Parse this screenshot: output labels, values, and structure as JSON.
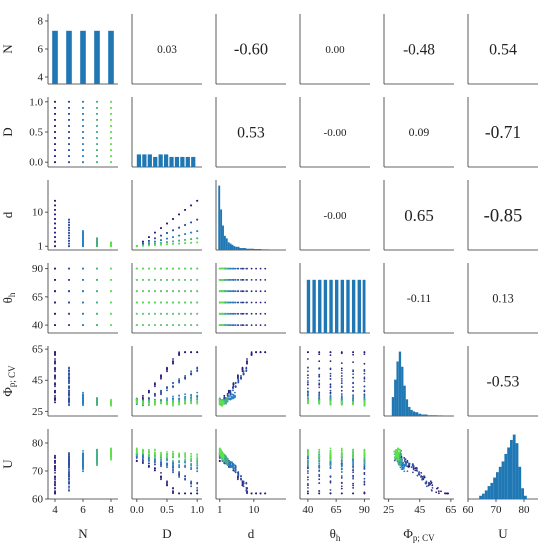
{
  "chart_data": {
    "type": "pairplot",
    "variables": [
      {
        "key": "N",
        "label": "N",
        "range": [
          3.5,
          8.5
        ],
        "ticks": [
          "4",
          "6",
          "8"
        ],
        "tick_values": [
          4,
          6,
          8
        ]
      },
      {
        "key": "D",
        "label": "D",
        "range": [
          -0.08,
          1.08
        ],
        "ticks": [
          "0.0",
          "0.5",
          "1.0"
        ],
        "tick_values": [
          0,
          0.5,
          1
        ]
      },
      {
        "key": "d",
        "label": "d",
        "range": [
          0,
          18.5
        ],
        "ticks": [
          "1",
          "10"
        ],
        "tick_values": [
          1,
          10
        ],
        "xticks": [
          "1",
          "10"
        ],
        "xtick_values": [
          1,
          10
        ]
      },
      {
        "key": "theta_h",
        "label": "θh",
        "range": [
          33,
          95
        ],
        "ticks": [
          "40",
          "65",
          "90"
        ],
        "tick_values": [
          40,
          65,
          90
        ]
      },
      {
        "key": "phi",
        "label": "Φp; CV",
        "range": [
          22,
          67
        ],
        "ticks": [
          "25",
          "45",
          "65"
        ],
        "tick_values": [
          25,
          45,
          65
        ]
      },
      {
        "key": "U",
        "label": "U",
        "range": [
          60,
          85
        ],
        "ticks": [
          "60",
          "70",
          "80"
        ],
        "tick_values": [
          60,
          70,
          80
        ]
      }
    ],
    "correlations": [
      {
        "row": 0,
        "col": 1,
        "value": "0.03"
      },
      {
        "row": 0,
        "col": 2,
        "value": "-0.60"
      },
      {
        "row": 0,
        "col": 3,
        "value": "0.00"
      },
      {
        "row": 0,
        "col": 4,
        "value": "-0.48"
      },
      {
        "row": 0,
        "col": 5,
        "value": "0.54"
      },
      {
        "row": 1,
        "col": 2,
        "value": "0.53"
      },
      {
        "row": 1,
        "col": 3,
        "value": "-0.00"
      },
      {
        "row": 1,
        "col": 4,
        "value": "0.09"
      },
      {
        "row": 1,
        "col": 5,
        "value": "-0.71"
      },
      {
        "row": 2,
        "col": 3,
        "value": "-0.00"
      },
      {
        "row": 2,
        "col": 4,
        "value": "0.65"
      },
      {
        "row": 2,
        "col": 5,
        "value": "-0.85"
      },
      {
        "row": 3,
        "col": 4,
        "value": "-0.11"
      },
      {
        "row": 3,
        "col": 5,
        "value": "0.13"
      },
      {
        "row": 4,
        "col": 5,
        "value": "-0.53"
      }
    ],
    "histograms": [
      {
        "var": "N",
        "bins": [
          [
            3.8,
            4.2,
            6.5
          ],
          [
            4.8,
            5.2,
            6.5
          ],
          [
            5.8,
            6.2,
            6.5
          ],
          [
            6.8,
            7.2,
            6.5
          ],
          [
            7.8,
            8.2,
            6.5
          ]
        ]
      },
      {
        "var": "D",
        "bins": [
          [
            0.0,
            0.07,
            0.25
          ],
          [
            0.09,
            0.16,
            0.25
          ],
          [
            0.18,
            0.25,
            0.25
          ],
          [
            0.27,
            0.34,
            0.2
          ],
          [
            0.36,
            0.43,
            0.25
          ],
          [
            0.45,
            0.52,
            0.25
          ],
          [
            0.54,
            0.61,
            0.2
          ],
          [
            0.63,
            0.7,
            0.2
          ],
          [
            0.72,
            0.79,
            0.2
          ],
          [
            0.81,
            0.88,
            0.2
          ],
          [
            0.9,
            0.97,
            0.2
          ]
        ]
      },
      {
        "var": "d",
        "bins": [
          [
            0.6,
            1.1,
            1.0
          ],
          [
            1.1,
            1.6,
            0.63
          ],
          [
            1.6,
            2.1,
            0.38
          ],
          [
            2.1,
            2.6,
            0.22
          ],
          [
            2.6,
            3.1,
            0.18
          ],
          [
            3.1,
            3.6,
            0.12
          ],
          [
            3.6,
            4.1,
            0.1
          ],
          [
            4.1,
            4.6,
            0.08
          ],
          [
            4.6,
            5.1,
            0.06
          ],
          [
            5.1,
            5.6,
            0.05
          ],
          [
            5.6,
            6.2,
            0.05
          ],
          [
            6.2,
            7,
            0.03
          ],
          [
            7,
            8,
            0.03
          ],
          [
            8,
            9,
            0.02
          ],
          [
            9,
            10,
            0.02
          ],
          [
            10,
            11,
            0.015
          ],
          [
            11,
            12,
            0.015
          ],
          [
            12,
            13,
            0.01
          ],
          [
            13,
            14,
            0.01
          ]
        ]
      },
      {
        "var": "theta_h",
        "bins": [
          [
            39,
            42,
            6.5
          ],
          [
            44,
            47,
            6.5
          ],
          [
            49,
            52,
            6.5
          ],
          [
            54,
            57,
            6.5
          ],
          [
            59,
            62,
            6.5
          ],
          [
            64,
            67,
            6.5
          ],
          [
            69,
            72,
            6.5
          ],
          [
            74,
            77,
            6.5
          ],
          [
            79,
            82,
            6.5
          ],
          [
            84,
            87,
            6.5
          ],
          [
            88.5,
            91,
            6.5
          ]
        ]
      },
      {
        "var": "phi",
        "bins": [
          [
            27,
            28.5,
            0.25
          ],
          [
            28.5,
            30,
            0.48
          ],
          [
            30,
            31.5,
            0.72
          ],
          [
            31.5,
            33,
            0.85
          ],
          [
            33,
            34.5,
            0.65
          ],
          [
            34.5,
            36,
            0.4
          ],
          [
            36,
            37.5,
            0.22
          ],
          [
            37.5,
            39,
            0.12
          ],
          [
            39,
            40.5,
            0.08
          ],
          [
            40.5,
            42,
            0.06
          ],
          [
            42,
            44,
            0.05
          ],
          [
            44,
            46,
            0.03
          ],
          [
            46,
            48,
            0.02
          ],
          [
            48,
            50,
            0.02
          ],
          [
            50,
            53,
            0.01
          ],
          [
            53,
            56,
            0.01
          ],
          [
            56,
            60,
            0.008
          ]
        ]
      },
      {
        "var": "U",
        "bins": [
          [
            64,
            65,
            0.03
          ],
          [
            65,
            66,
            0.05
          ],
          [
            66,
            67,
            0.08
          ],
          [
            67,
            68,
            0.12
          ],
          [
            68,
            69,
            0.15
          ],
          [
            69,
            70,
            0.2
          ],
          [
            70,
            71,
            0.25
          ],
          [
            71,
            72,
            0.3
          ],
          [
            72,
            73,
            0.35
          ],
          [
            73,
            74,
            0.42
          ],
          [
            74,
            75,
            0.48
          ],
          [
            75,
            76,
            0.55
          ],
          [
            76,
            77,
            0.6
          ],
          [
            77,
            78,
            0.52
          ],
          [
            78,
            79,
            0.3
          ],
          [
            79,
            80,
            0.1
          ],
          [
            80,
            81,
            0.03
          ]
        ]
      }
    ],
    "colors": {
      "low": "#2d1b7a",
      "mid": "#2a7fc2",
      "high": "#5ee04a",
      "histogram": "#1f77b4"
    },
    "grid": false,
    "legend": "none"
  }
}
